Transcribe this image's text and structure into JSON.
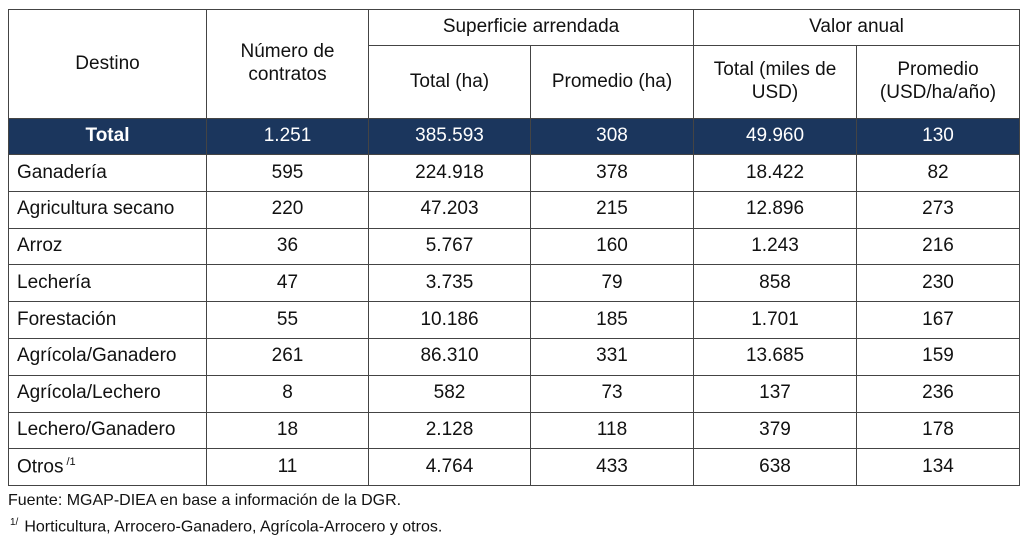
{
  "header": {
    "destino": "Destino",
    "numero": "Número de contratos",
    "superficie_group": "Superficie arrendada",
    "valor_group": "Valor anual",
    "sup_total": "Total (ha)",
    "sup_promedio": "Promedio (ha)",
    "val_total": "Total (miles de USD)",
    "val_promedio": "Promedio (USD/ha/año)"
  },
  "total_row": {
    "destino": "Total",
    "numero": "1.251",
    "sup_total": "385.593",
    "sup_promedio": "308",
    "val_total": "49.960",
    "val_promedio": "130"
  },
  "rows": [
    {
      "destino": "Ganadería",
      "numero": "595",
      "sup_total": "224.918",
      "sup_promedio": "378",
      "val_total": "18.422",
      "val_promedio": "82"
    },
    {
      "destino": "Agricultura secano",
      "numero": "220",
      "sup_total": "47.203",
      "sup_promedio": "215",
      "val_total": "12.896",
      "val_promedio": "273"
    },
    {
      "destino": "Arroz",
      "numero": "36",
      "sup_total": "5.767",
      "sup_promedio": "160",
      "val_total": "1.243",
      "val_promedio": "216"
    },
    {
      "destino": "Lechería",
      "numero": "47",
      "sup_total": "3.735",
      "sup_promedio": "79",
      "val_total": "858",
      "val_promedio": "230"
    },
    {
      "destino": "Forestación",
      "numero": "55",
      "sup_total": "10.186",
      "sup_promedio": "185",
      "val_total": "1.701",
      "val_promedio": "167"
    },
    {
      "destino": "Agrícola/Ganadero",
      "numero": "261",
      "sup_total": "86.310",
      "sup_promedio": "331",
      "val_total": "13.685",
      "val_promedio": "159"
    },
    {
      "destino": "Agrícola/Lechero",
      "numero": "8",
      "sup_total": "582",
      "sup_promedio": "73",
      "val_total": "137",
      "val_promedio": "236"
    },
    {
      "destino": "Lechero/Ganadero",
      "numero": "18",
      "sup_total": "2.128",
      "sup_promedio": "118",
      "val_total": "379",
      "val_promedio": "178"
    },
    {
      "destino": "Otros",
      "footnote_mark": "/1",
      "numero": "11",
      "sup_total": "4.764",
      "sup_promedio": "433",
      "val_total": "638",
      "val_promedio": "134"
    }
  ],
  "notes": {
    "source": "Fuente: MGAP-DIEA en base a información de la DGR.",
    "footnote_mark": "1/",
    "footnote_text": "Horticultura, Arrocero-Ganadero, Agrícola-Arrocero y otros."
  },
  "colors": {
    "total_row_bg": "#1b365d",
    "total_row_text": "#ffffff",
    "border": "#444444"
  }
}
